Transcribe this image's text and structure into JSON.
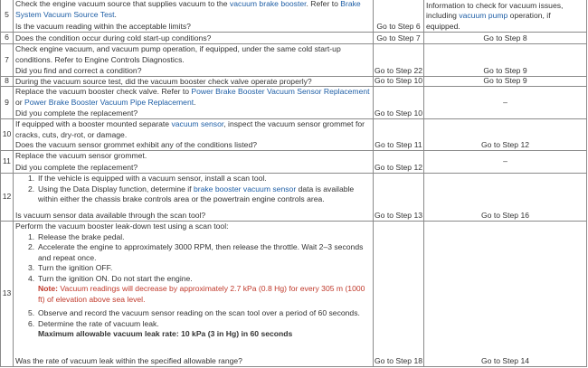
{
  "rows": [
    {
      "step": "5",
      "text": [
        "Check the engine vacuum source that supplies vacuum to the ",
        {
          "text": "vacuum brake booster",
          "link": true
        },
        ". Refer to ",
        {
          "text": "Brake System Vacuum Source Test",
          "link": true
        },
        "."
      ],
      "question": "Is the vacuum reading within the acceptable limits?",
      "yes": "Go to Step 6",
      "no": [
        "Go to Engine Controls Diagnostics Information to check for vacuum issues, including ",
        {
          "text": "vacuum pump",
          "link": true
        },
        " operation, if equipped."
      ]
    },
    {
      "step": "6",
      "question": "Does the condition occur during cold start-up conditions?",
      "yes": "Go to Step 7",
      "no": [
        "Go to Step 8"
      ]
    },
    {
      "step": "7",
      "text": [
        "Check engine vacuum, and vacuum pump operation, if equipped, under the same cold start-up conditions. Refer to Engine Controls Diagnostics."
      ],
      "question": "Did you find and correct a condition?",
      "yes": "Go to Step 22",
      "no": [
        "Go to Step 9"
      ]
    },
    {
      "step": "8",
      "question": "During the vacuum source test, did the vacuum booster check valve operate properly?",
      "yes": "Go to Step 10",
      "no": [
        "Go to Step 9"
      ]
    },
    {
      "step": "9",
      "text": [
        "Replace the vacuum booster check valve. Refer to ",
        {
          "text": "Power Brake Booster Vacuum Sensor Replacement",
          "link": true
        },
        " or ",
        {
          "text": "Power Brake Booster Vacuum Pipe Replacement",
          "link": true
        },
        "."
      ],
      "question": "Did you complete the replacement?",
      "yes": "Go to Step 10",
      "no": [
        "–"
      ]
    },
    {
      "step": "10",
      "text": [
        "If equipped with a booster mounted separate ",
        {
          "text": "vacuum sensor",
          "link": true
        },
        ", inspect the vacuum sensor grommet for cracks, cuts, dry-rot, or damage."
      ],
      "question": "Does the vacuum sensor grommet exhibit any of the conditions listed?",
      "yes": "Go to Step 11",
      "no": [
        "Go to Step 12"
      ]
    },
    {
      "step": "11",
      "text": [
        "Replace the vacuum sensor grommet."
      ],
      "question": "Did you complete the replacement?",
      "yes": "Go to Step 12",
      "no": [
        "–"
      ]
    },
    {
      "step": "12",
      "steps": [
        {
          "number": "1.",
          "text": [
            "If the vehicle is equipped with a vacuum sensor, install a scan tool."
          ]
        },
        {
          "number": "2.",
          "text": [
            "Using the Data Display function, determine if ",
            {
              "text": "brake booster vacuum sensor",
              "link": true
            },
            " data is available within either the chassis brake controls area or the powertrain engine controls area."
          ]
        }
      ],
      "question": "Is vacuum sensor data available through the scan tool?",
      "yes": "Go to Step 13",
      "no": [
        "Go to Step 16"
      ]
    },
    {
      "step": "13",
      "text": [
        "Perform the vacuum booster leak-down test using a scan tool:"
      ],
      "steps": [
        {
          "number": "1.",
          "text": [
            "Release the brake pedal."
          ]
        },
        {
          "number": "2.",
          "text": [
            "Accelerate the engine to approximately 3000 RPM, then release the throttle. Wait 2–3 seconds and repeat once."
          ]
        },
        {
          "number": "3.",
          "text": [
            "Turn the ignition OFF."
          ]
        },
        {
          "number": "4.",
          "text": [
            "Turn the ignition ON. Do not start the engine."
          ],
          "note_label": "Note:",
          "note": "Vacuum readings will decrease by approximately 2.7 kPa (0.8 Hg) for every 305 m (1000 ft) of elevation above sea level."
        },
        {
          "number": "5.",
          "text": [
            "Observe and record the vacuum sensor reading on the scan tool over a period of 60 seconds."
          ]
        },
        {
          "number": "6.",
          "text": [
            "Determine the rate of vacuum leak."
          ],
          "strong": "Maximum allowable vacuum leak rate: 10 kPa (3 in Hg) in 60 seconds"
        }
      ],
      "question": "Was the rate of vacuum leak within the specified allowable range?",
      "yes": "Go to Step 18",
      "no": [
        "Go to Step 14"
      ]
    }
  ]
}
